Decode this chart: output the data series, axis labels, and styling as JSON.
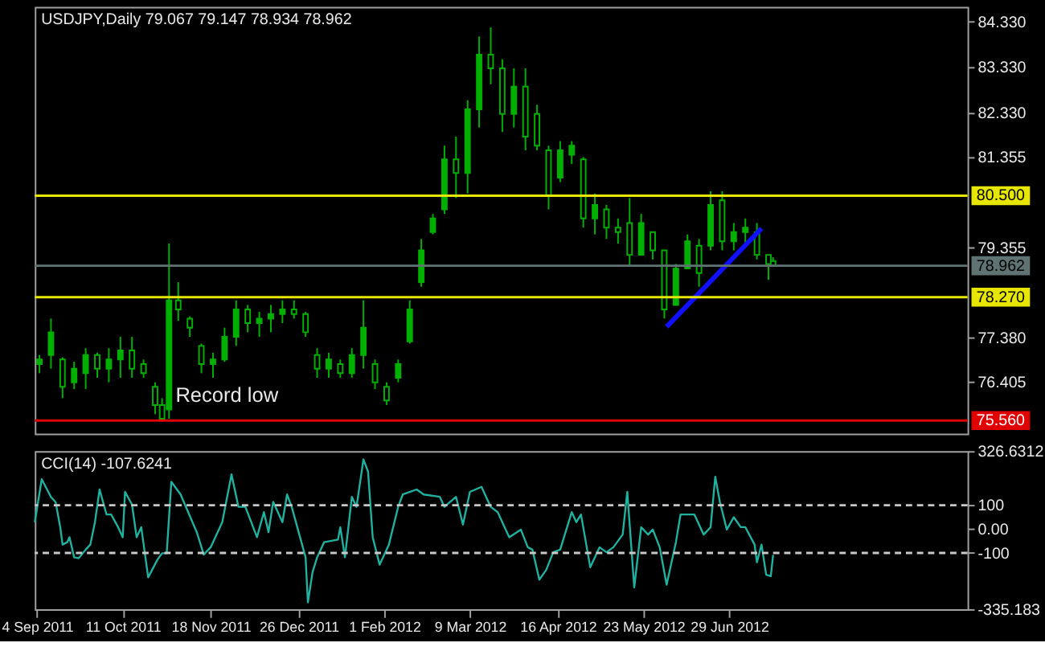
{
  "chart_data": [
    {
      "type": "candlestick",
      "title": "USDJPY,Daily  79.067 79.147 78.934 78.962",
      "color": "#00b000",
      "x": [
        "2011-09-05",
        "2011-09-10",
        "2011-09-15",
        "2011-09-20",
        "2011-09-25",
        "2011-09-30",
        "2011-10-05",
        "2011-10-10",
        "2011-10-15",
        "2011-10-20",
        "2011-10-25",
        "2011-10-28",
        "2011-10-31",
        "2011-11-04",
        "2011-11-09",
        "2011-11-14",
        "2011-11-19",
        "2011-11-24",
        "2011-11-29",
        "2011-12-04",
        "2011-12-09",
        "2011-12-14",
        "2011-12-19",
        "2011-12-24",
        "2011-12-29",
        "2012-01-03",
        "2012-01-08",
        "2012-01-13",
        "2012-01-18",
        "2012-01-23",
        "2012-01-28",
        "2012-02-02",
        "2012-02-07",
        "2012-02-12",
        "2012-02-17",
        "2012-02-22",
        "2012-02-27",
        "2012-03-03",
        "2012-03-08",
        "2012-03-13",
        "2012-03-18",
        "2012-03-23",
        "2012-03-28",
        "2012-04-02",
        "2012-04-07",
        "2012-04-12",
        "2012-04-17",
        "2012-04-22",
        "2012-04-27",
        "2012-05-02",
        "2012-05-07",
        "2012-05-12",
        "2012-05-17",
        "2012-05-22",
        "2012-05-27",
        "2012-06-01",
        "2012-06-06",
        "2012-06-11",
        "2012-06-16",
        "2012-06-21",
        "2012-06-26",
        "2012-07-01",
        "2012-07-06",
        "2012-07-11",
        "2012-07-16",
        "2012-07-18"
      ],
      "ohlc": [
        [
          76.8,
          77.0,
          76.6,
          76.9
        ],
        [
          77.0,
          77.8,
          76.7,
          77.5
        ],
        [
          76.9,
          76.95,
          76.05,
          76.3
        ],
        [
          76.4,
          76.85,
          76.25,
          76.7
        ],
        [
          76.6,
          77.15,
          76.25,
          77.0
        ],
        [
          77.0,
          77.05,
          76.5,
          76.7
        ],
        [
          76.7,
          77.15,
          76.4,
          76.9
        ],
        [
          76.9,
          77.4,
          76.5,
          77.1
        ],
        [
          77.1,
          77.4,
          76.5,
          76.7
        ],
        [
          76.8,
          76.9,
          76.5,
          76.6
        ],
        [
          76.3,
          76.4,
          75.7,
          75.9
        ],
        [
          75.9,
          76.05,
          75.57,
          75.6
        ],
        [
          75.8,
          79.45,
          75.6,
          78.2
        ],
        [
          78.2,
          78.6,
          77.75,
          78.0
        ],
        [
          77.8,
          77.85,
          77.4,
          77.6
        ],
        [
          77.2,
          77.25,
          76.6,
          76.8
        ],
        [
          76.8,
          77.05,
          76.5,
          76.9
        ],
        [
          76.9,
          77.6,
          76.85,
          77.4
        ],
        [
          77.4,
          78.2,
          77.2,
          78.0
        ],
        [
          78.0,
          78.1,
          77.5,
          77.7
        ],
        [
          77.7,
          77.95,
          77.4,
          77.8
        ],
        [
          77.8,
          78.1,
          77.5,
          77.9
        ],
        [
          77.9,
          78.2,
          77.7,
          78.0
        ],
        [
          78.0,
          78.2,
          77.8,
          77.9
        ],
        [
          77.9,
          77.95,
          77.4,
          77.5
        ],
        [
          77.0,
          77.15,
          76.5,
          76.7
        ],
        [
          76.7,
          77.05,
          76.5,
          76.9
        ],
        [
          76.8,
          76.9,
          76.5,
          76.6
        ],
        [
          76.6,
          77.15,
          76.5,
          77.0
        ],
        [
          77.0,
          78.2,
          76.7,
          77.6
        ],
        [
          76.8,
          76.9,
          76.25,
          76.4
        ],
        [
          76.3,
          76.4,
          75.9,
          76.0
        ],
        [
          76.5,
          76.9,
          76.4,
          76.8
        ],
        [
          77.3,
          78.2,
          77.25,
          78.0
        ],
        [
          78.6,
          79.55,
          78.5,
          79.3
        ],
        [
          79.7,
          80.1,
          79.65,
          80.0
        ],
        [
          80.2,
          81.6,
          80.1,
          81.3
        ],
        [
          81.3,
          81.8,
          80.45,
          81.0
        ],
        [
          81.0,
          82.6,
          80.55,
          82.4
        ],
        [
          82.4,
          84.0,
          82.0,
          83.6
        ],
        [
          83.6,
          84.2,
          82.95,
          83.3
        ],
        [
          83.3,
          83.5,
          81.9,
          82.3
        ],
        [
          82.3,
          83.3,
          82.0,
          82.9
        ],
        [
          82.9,
          83.3,
          81.5,
          81.8
        ],
        [
          82.3,
          82.5,
          81.5,
          81.6
        ],
        [
          81.5,
          81.6,
          80.2,
          80.5
        ],
        [
          80.9,
          81.7,
          80.8,
          81.5
        ],
        [
          81.4,
          81.7,
          81.2,
          81.6
        ],
        [
          81.3,
          81.35,
          79.8,
          80.0
        ],
        [
          80.0,
          80.55,
          79.65,
          80.3
        ],
        [
          80.2,
          80.3,
          79.55,
          79.8
        ],
        [
          79.8,
          80.0,
          79.45,
          79.7
        ],
        [
          79.9,
          80.45,
          78.95,
          79.2
        ],
        [
          79.2,
          80.1,
          79.2,
          79.9
        ],
        [
          79.7,
          79.7,
          79.1,
          79.3
        ],
        [
          79.3,
          79.3,
          77.8,
          78.0
        ],
        [
          78.1,
          79.0,
          78.1,
          78.9
        ],
        [
          78.9,
          79.65,
          78.9,
          79.5
        ],
        [
          79.4,
          79.55,
          78.5,
          78.8
        ],
        [
          79.4,
          80.6,
          79.3,
          80.3
        ],
        [
          80.4,
          80.6,
          79.3,
          79.5
        ],
        [
          79.5,
          79.9,
          79.3,
          79.7
        ],
        [
          79.7,
          80.0,
          79.45,
          79.8
        ],
        [
          79.7,
          79.9,
          79.1,
          79.2
        ],
        [
          79.2,
          79.2,
          78.65,
          79.0
        ],
        [
          79.067,
          79.147,
          78.934,
          78.962
        ]
      ],
      "series": [
        {
          "type": "line",
          "color": "#1010ff",
          "x": [
            "2012-06-02",
            "2012-07-13"
          ],
          "values": [
            77.62,
            79.78
          ]
        }
      ],
      "xlim": [
        "2011-09-03",
        "2012-10-10"
      ],
      "ylim": [
        75.27,
        84.65
      ],
      "yticks": [
        {
          "value": 84.33,
          "label": "84.330"
        },
        {
          "value": 83.33,
          "label": "83.330"
        },
        {
          "value": 82.33,
          "label": "82.330"
        },
        81.355,
        79.355,
        {
          "value": 77.38,
          "label": "77.380"
        },
        76.405
      ],
      "tick_labels": "y",
      "ref_lines": [
        {
          "axis": "y",
          "value": 80.5,
          "label": "80.500",
          "color": "#e6e600"
        },
        {
          "axis": "y",
          "value": 78.962,
          "label": "78.962",
          "color": "#5f7373"
        },
        {
          "axis": "y",
          "value": 78.27,
          "label": "78.270",
          "color": "#e6e600"
        },
        {
          "axis": "y",
          "value": 75.56,
          "label": "75.560",
          "color": "#e00000"
        }
      ],
      "annotations": [
        {
          "text": "Record low",
          "x": "2011-11-25",
          "y": 75.56
        }
      ]
    },
    {
      "type": "line",
      "title": "CCI(14) -107.6241",
      "color": "#20b2a0",
      "x": [
        "2011-09-03",
        "2011-09-06",
        "2011-09-10",
        "2011-09-12",
        "2011-09-14",
        "2011-09-15",
        "2011-09-17",
        "2011-09-18",
        "2011-09-20",
        "2011-09-22",
        "2011-09-25",
        "2011-09-27",
        "2011-09-29",
        "2011-10-01",
        "2011-10-04",
        "2011-10-06",
        "2011-10-09",
        "2011-10-11",
        "2011-10-12",
        "2011-10-15",
        "2011-10-17",
        "2011-10-19",
        "2011-10-22",
        "2011-10-26",
        "2011-10-28",
        "2011-10-30",
        "2011-11-01",
        "2011-11-05",
        "2011-11-12",
        "2011-11-15",
        "2011-11-18",
        "2011-11-23",
        "2011-11-27",
        "2011-11-30",
        "2011-12-03",
        "2011-12-08",
        "2011-12-11",
        "2011-12-13",
        "2011-12-15",
        "2011-12-19",
        "2011-12-21",
        "2011-12-23",
        "2011-12-29",
        "2011-12-30",
        "2012-01-01",
        "2012-01-03",
        "2012-01-06",
        "2012-01-12",
        "2012-01-13",
        "2012-01-15",
        "2012-01-18",
        "2012-01-20",
        "2012-01-23",
        "2012-01-25",
        "2012-01-27",
        "2012-01-30",
        "2012-02-03",
        "2012-02-07",
        "2012-02-09",
        "2012-02-15",
        "2012-02-18",
        "2012-02-25",
        "2012-02-27",
        "2012-03-03",
        "2012-03-06",
        "2012-03-09",
        "2012-03-14",
        "2012-03-18",
        "2012-03-21",
        "2012-03-26",
        "2012-03-31",
        "2012-04-03",
        "2012-04-05",
        "2012-04-08",
        "2012-04-11",
        "2012-04-14",
        "2012-04-17",
        "2012-04-22",
        "2012-04-24",
        "2012-04-26",
        "2012-04-30",
        "2012-05-04",
        "2012-05-07",
        "2012-05-10",
        "2012-05-14",
        "2012-05-16",
        "2012-05-19",
        "2012-05-22",
        "2012-05-25",
        "2012-05-27",
        "2012-05-30",
        "2012-06-02",
        "2012-06-06",
        "2012-06-08",
        "2012-06-14",
        "2012-06-18",
        "2012-06-21",
        "2012-06-23",
        "2012-06-25",
        "2012-06-28",
        "2012-07-01",
        "2012-07-04",
        "2012-07-06",
        "2012-07-10",
        "2012-07-11",
        "2012-07-13",
        "2012-07-15",
        "2012-07-17",
        "2012-07-18"
      ],
      "values": [
        29,
        209,
        134,
        113,
        8,
        -65,
        -55,
        -34,
        -118,
        -122,
        -86,
        -65,
        29,
        166,
        61,
        61,
        8,
        -34,
        156,
        103,
        -34,
        8,
        -202,
        -128,
        -101,
        -101,
        198,
        145,
        -13,
        -107,
        -76,
        29,
        229,
        93,
        93,
        -34,
        71,
        -13,
        114,
        29,
        145,
        93,
        -118,
        -307,
        -181,
        -118,
        -55,
        -44,
        8,
        -118,
        135,
        93,
        292,
        240,
        -34,
        -149,
        -65,
        93,
        145,
        166,
        145,
        135,
        93,
        135,
        19,
        156,
        177,
        93,
        71,
        -34,
        -2,
        -76,
        -86,
        -212,
        -170,
        -97,
        -86,
        71,
        29,
        61,
        -160,
        -76,
        -97,
        -76,
        -23,
        156,
        -244,
        8,
        -23,
        -2,
        -76,
        -233,
        -55,
        61,
        61,
        -23,
        8,
        219,
        114,
        -2,
        50,
        8,
        8,
        -65,
        -139,
        -65,
        -191,
        -197,
        -108
      ],
      "xlim": [
        "2011-09-03",
        "2012-10-10"
      ],
      "xticks": [
        {
          "value": "2011-09-04",
          "label": "4 Sep 2011"
        },
        {
          "value": "2011-10-11",
          "label": "11 Oct 2011"
        },
        {
          "value": "2011-11-18",
          "label": "18 Nov 2011"
        },
        {
          "value": "2011-12-26",
          "label": "26 Dec 2011"
        },
        {
          "value": "2012-02-01",
          "label": "1 Feb 2012"
        },
        {
          "value": "2012-03-09",
          "label": "9 Mar 2012"
        },
        {
          "value": "2012-04-16",
          "label": "16 Apr 2012"
        },
        {
          "value": "2012-05-23",
          "label": "23 May 2012"
        },
        {
          "value": "2012-06-29",
          "label": "29 Jun 2012"
        }
      ],
      "ylim": [
        -335.183,
        326.6312
      ],
      "yticks": [
        326.6312,
        100,
        {
          "value": 0,
          "label": "0.00"
        },
        -100,
        -335.183
      ],
      "ref_lines": [
        {
          "axis": "y",
          "value": 100,
          "color": "#c8c8c8",
          "line_style": "dashed"
        },
        {
          "axis": "y",
          "value": -100,
          "color": "#c8c8c8",
          "line_style": "dashed"
        }
      ]
    }
  ]
}
